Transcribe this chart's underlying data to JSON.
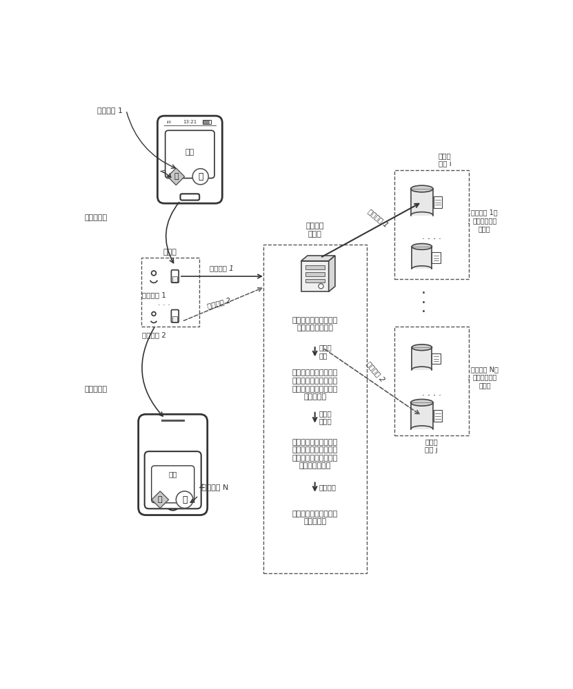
{
  "bg_color": "#ffffff",
  "lc": "#2a2a2a",
  "lc2": "#555555",
  "labels": {
    "preset_app1": "预设应用 1",
    "magnified1": "放大界面图",
    "magnified2": "放大界面图",
    "client": "客户端",
    "tuser1": "目标用户 1",
    "tuser2": "目标用户 2",
    "biz1": "业务请求 1",
    "biz2": "业务请求 2",
    "biz1r": "业务请求 1",
    "biz2r": "业务请求 2",
    "fwd_server": "请求转发\n服务端",
    "preset_appN": "预设应用 N",
    "dbnode_i": "数据库\n节点 i",
    "dbnode_j": "数据库\n节点 j",
    "dbset1": "预设应用 1对\n应的数据库节\n点子集",
    "dbsetN": "预设应用 N对\n应的数据库节\n点子集",
    "step1_txt": "获取目标应用对应的分\n片键获取规则集合",
    "step2_label": "分片键\n获取",
    "step3_txt": "基于获取到的分片键获\n取规则集合，对业务请\n求进行解析处理，得到\n目标分片键",
    "step4_label": "目标节\n点确定",
    "step5_txt": "基于获取到的目标分片\n键，从目标应用对应的\n数据库节点子集中确定\n目标数据库节点",
    "step6_label": "请求转发",
    "step7_txt": "将业务请求转发至目标\n数据库节点",
    "changyong": "常用",
    "time_str": "13:21",
    "zhi_char": "支",
    "tao_char": "淘"
  }
}
